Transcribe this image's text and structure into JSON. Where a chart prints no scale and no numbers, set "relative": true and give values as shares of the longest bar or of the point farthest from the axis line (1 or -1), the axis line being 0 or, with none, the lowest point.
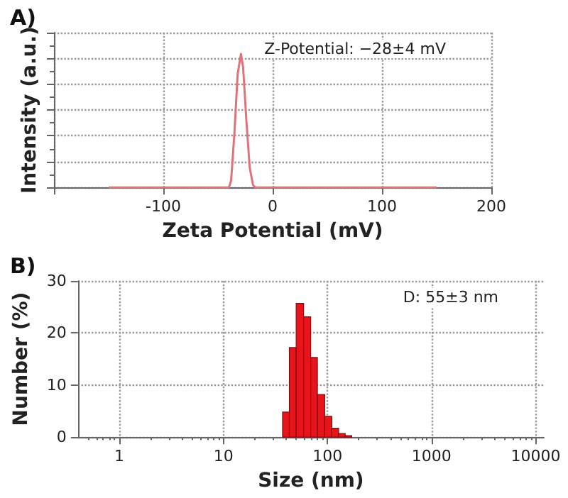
{
  "chart_data": [
    {
      "type": "line",
      "title": "A)",
      "xlabel": "Zeta Potential (mV)",
      "ylabel": "Intensity (a.u.)",
      "annotations": [
        "Z-Potential: −28±4 mV"
      ],
      "relative": true,
      "color": "#e0737a",
      "x": [
        -150,
        -40,
        -38,
        -35,
        -32,
        -29,
        -27,
        -24,
        -21,
        -18,
        -16,
        150
      ],
      "values": [
        0,
        0,
        0.05,
        0.4,
        0.85,
        1,
        0.9,
        0.5,
        0.15,
        0.02,
        0,
        0
      ],
      "xlim": [
        -200,
        200
      ],
      "xticks": [
        {
          "value": -200,
          "label": null
        },
        -100,
        0,
        100,
        200
      ],
      "grid": true
    },
    {
      "type": "histogram",
      "title": "B)",
      "xlabel": "Size (nm)",
      "ylabel": "Number (%)",
      "annotations": [
        "D: 55±3 nm"
      ],
      "color": "#e8141b",
      "log": "x",
      "bins": [
        37,
        43,
        50,
        59,
        69,
        80,
        94,
        110,
        128,
        148,
        171
      ],
      "values": [
        4.8,
        17.2,
        25.7,
        23.1,
        15.3,
        8.2,
        4.0,
        1.7,
        0.7,
        0.3
      ],
      "xlim": [
        0.4,
        12000
      ],
      "xticks": [
        1,
        10,
        100,
        1000,
        10000
      ],
      "ylim": [
        0,
        30
      ],
      "yticks": [
        0,
        10,
        20,
        30
      ],
      "grid": true
    }
  ]
}
